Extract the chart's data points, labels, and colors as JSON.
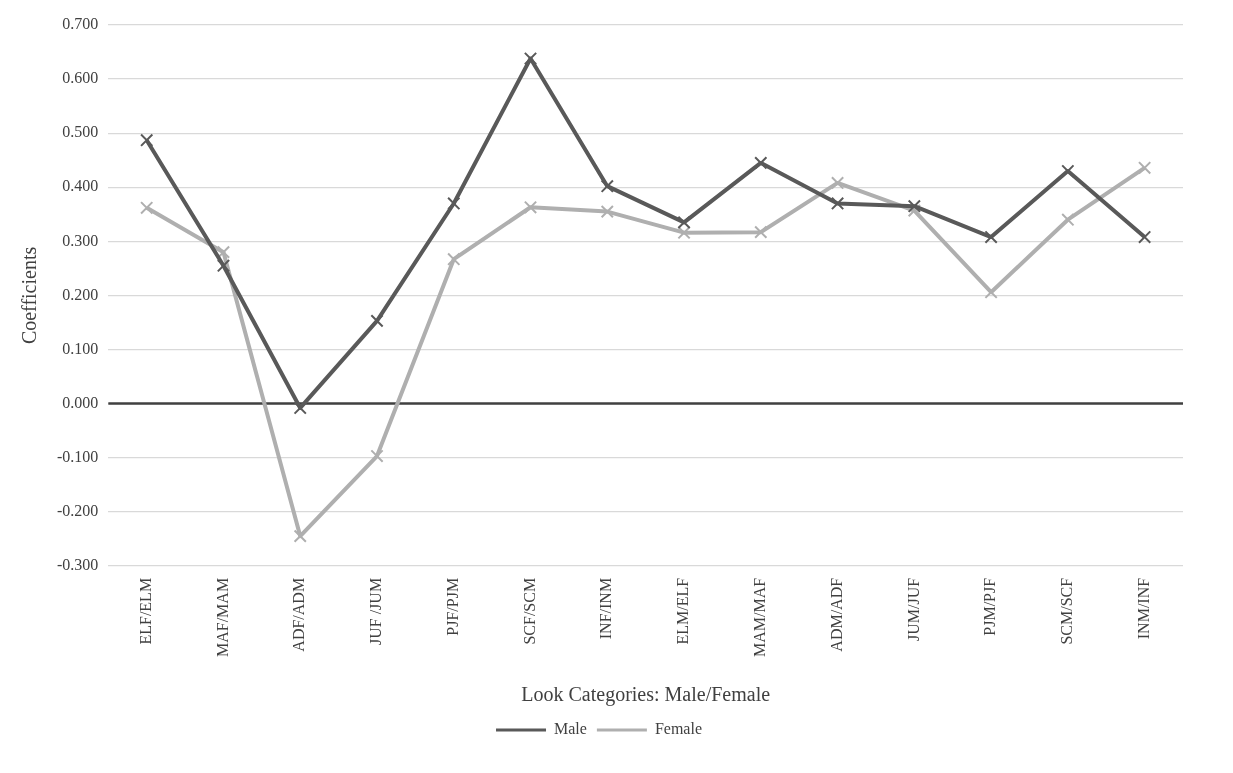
{
  "chart_data": {
    "type": "line",
    "xlabel": "Look Categories: Male/Female",
    "ylabel": "Coefficients",
    "categories": [
      "ELF/ELM",
      "MAF/MAM",
      "ADF/ADM",
      "JUF /JUM",
      "PJF/PJM",
      "SCF/SCM",
      "INF/INM",
      "ELM/ELF",
      "MAM/MAF",
      "ADM/ADF",
      "JUM/JUF",
      "PJM/PJF",
      "SCM/SCF",
      "INM/INF"
    ],
    "series": [
      {
        "name": "Male",
        "color": "#595959",
        "values": [
          0.487,
          0.255,
          -0.008,
          0.153,
          0.37,
          0.638,
          0.402,
          0.335,
          0.445,
          0.37,
          0.365,
          0.308,
          0.43,
          0.308
        ]
      },
      {
        "name": "Female",
        "color": "#afafaf",
        "values": [
          0.362,
          0.28,
          -0.245,
          -0.097,
          0.267,
          0.363,
          0.355,
          0.316,
          0.317,
          0.408,
          0.357,
          0.206,
          0.34,
          0.436
        ]
      }
    ],
    "ylim": [
      -0.3,
      0.7
    ],
    "yticks": [
      {
        "value": -0.3,
        "label": "-0.300"
      },
      {
        "value": -0.2,
        "label": "-0.200"
      },
      {
        "value": -0.1,
        "label": "-0.100"
      },
      {
        "value": 0,
        "label": "0.000"
      },
      {
        "value": 0.1,
        "label": "0.100"
      },
      {
        "value": 0.2,
        "label": "0.200"
      },
      {
        "value": 0.3,
        "label": "0.300"
      },
      {
        "value": 0.4,
        "label": "0.400"
      },
      {
        "value": 0.5,
        "label": "0.500"
      },
      {
        "value": 0.6,
        "label": "0.600"
      },
      {
        "value": 0.7,
        "label": "0.700"
      }
    ],
    "ref_lines": [
      {
        "axis": "y",
        "value": 0,
        "color": "#404040"
      }
    ],
    "grid": "y",
    "legend": "bottom",
    "marker": "cross",
    "line_style": "solid"
  }
}
